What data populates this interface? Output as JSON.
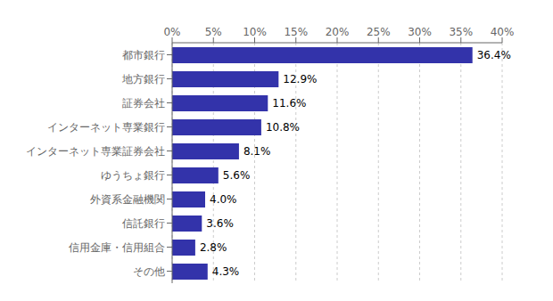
{
  "chart_data": {
    "type": "bar",
    "orientation": "horizontal",
    "categories": [
      "その他",
      "信用金庫・信用組合",
      "信託銀行",
      "外資系金融機関",
      "ゆうちょ銀行",
      "インターネット専業証券会社",
      "インターネット専業銀行",
      "証券会社",
      "地方銀行",
      "都市銀行"
    ],
    "values": [
      4.3,
      2.8,
      3.6,
      4.0,
      5.6,
      8.1,
      10.8,
      11.6,
      12.9,
      36.4
    ],
    "value_labels": [
      "4.3%",
      "2.8%",
      "3.6%",
      "4.0%",
      "5.6%",
      "8.1%",
      "10.8%",
      "11.6%",
      "12.9%",
      "36.4%"
    ],
    "data_labels": true,
    "color": "#3333aa",
    "xlim": [
      0,
      40
    ],
    "xticks": [
      {
        "value": 0,
        "label": "0%"
      },
      {
        "value": 5,
        "label": "5%"
      },
      {
        "value": 10,
        "label": "10%"
      },
      {
        "value": 15,
        "label": "15%"
      },
      {
        "value": 20,
        "label": "20%"
      },
      {
        "value": 25,
        "label": "25%"
      },
      {
        "value": 30,
        "label": "30%"
      },
      {
        "value": 35,
        "label": "35%"
      },
      {
        "value": 40,
        "label": "40%"
      }
    ],
    "grid": true
  }
}
